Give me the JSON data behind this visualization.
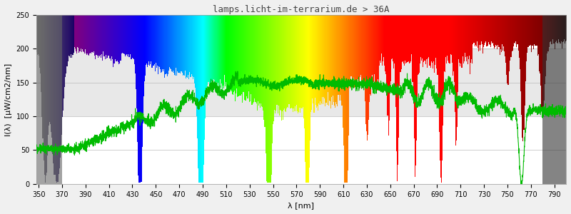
{
  "title": "lamps.licht-im-terrarium.de > 36A",
  "xlabel": "λ [nm]",
  "ylabel": "I(λ)  [μW/cm2/nm]",
  "xlim": [
    348,
    800
  ],
  "ylim": [
    0,
    250
  ],
  "yticks": [
    0,
    50,
    100,
    150,
    200,
    250
  ],
  "xticks": [
    350,
    370,
    390,
    410,
    430,
    450,
    470,
    490,
    510,
    530,
    550,
    570,
    590,
    610,
    630,
    650,
    670,
    690,
    710,
    730,
    750,
    770,
    790
  ],
  "background_color": "#f0f0f0",
  "plot_bg_color": "#ffffff",
  "shaded_band_y1": 100,
  "shaded_band_y2": 200,
  "shaded_band_color": "#e8e8e8",
  "green_line_color": "#00bb00",
  "title_fontsize": 9,
  "axis_fontsize": 8,
  "tick_fontsize": 7
}
